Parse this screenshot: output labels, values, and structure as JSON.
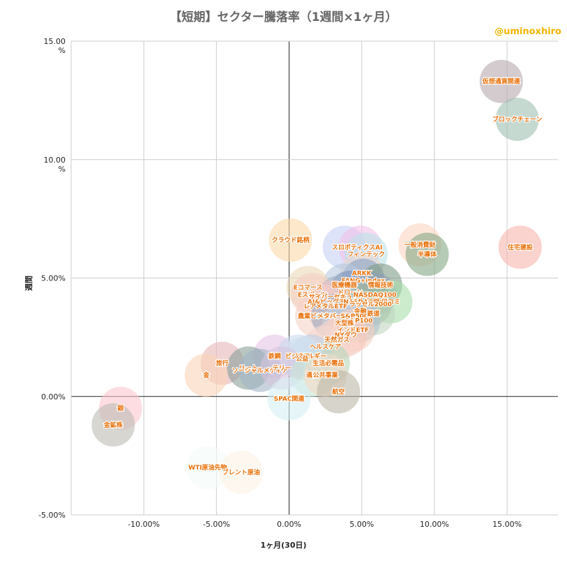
{
  "chart_data": {
    "type": "scatter",
    "title": "【短期】セクター騰落率（1週間×1ヶ月）",
    "watermark": "@uminoxhiro",
    "xlabel": "1ヶ月(30日)",
    "ylabel": "週間",
    "xlim": [
      -15,
      18.5
    ],
    "ylim": [
      -5,
      15
    ],
    "x_ticks": [
      -10,
      -5,
      0,
      5,
      10,
      15
    ],
    "x_tick_labels": [
      "-10.00%",
      "-5.00%",
      "0.00%",
      "5.00%",
      "10.00%",
      "15.00%"
    ],
    "y_ticks": [
      -5,
      0,
      5,
      10,
      15
    ],
    "y_tick_labels": [
      "-5.00%",
      "0.00%",
      "5.00%",
      "10.00\n%",
      "15.00\n%"
    ],
    "grid": true,
    "points": [
      {
        "label": "仮想通貨関連",
        "x": 14.6,
        "y": 13.3,
        "color": "#b7a8ad"
      },
      {
        "label": "ブロックチェーン",
        "x": 15.7,
        "y": 11.7,
        "color": "#9fbfb2"
      },
      {
        "label": "住宅建設",
        "x": 15.9,
        "y": 6.3,
        "color": "#f7b4ae"
      },
      {
        "label": "一般消費財",
        "x": 9.0,
        "y": 6.4,
        "color": "#fbd5c0"
      },
      {
        "label": "半導体",
        "x": 9.5,
        "y": 6.0,
        "color": "#86a886"
      },
      {
        "label": "クラウド銘柄",
        "x": 0.1,
        "y": 6.6,
        "color": "#fbd9a8"
      },
      {
        "label": "スポーツ",
        "x": 3.8,
        "y": 6.3,
        "color": "#c6d0f5"
      },
      {
        "label": "ロボティクスAI",
        "x": 4.9,
        "y": 6.3,
        "color": "#f3c0ea"
      },
      {
        "label": "フィンテック",
        "x": 5.3,
        "y": 6.0,
        "color": "#bde2e8"
      },
      {
        "label": "ARKK",
        "x": 5.0,
        "y": 5.2,
        "color": "#ead7d0"
      },
      {
        "label": "FANG+index",
        "x": 5.1,
        "y": 4.9,
        "color": "#8aa4c3"
      },
      {
        "label": "情報技術",
        "x": 6.3,
        "y": 4.7,
        "color": "#7f9b87"
      },
      {
        "label": "医療機器",
        "x": 3.8,
        "y": 4.7,
        "color": "#b8c8e0"
      },
      {
        "label": "Eコマース",
        "x": 1.3,
        "y": 4.6,
        "color": "#ead8b8"
      },
      {
        "label": "ドローン",
        "x": 4.2,
        "y": 4.4,
        "color": "#7d93b8"
      },
      {
        "label": "Eスポーツ",
        "x": 1.6,
        "y": 4.3,
        "color": "#f5cfc5"
      },
      {
        "label": "サイバーセキュリティ",
        "x": 3.5,
        "y": 4.2,
        "color": "#a4b4c8"
      },
      {
        "label": "NASDAQ100",
        "x": 5.9,
        "y": 4.3,
        "color": "#8f9fb8"
      },
      {
        "label": "AI&ビッグデータ",
        "x": 3.0,
        "y": 4.0,
        "color": "#f1c6c6"
      },
      {
        "label": "NASDAQ総合",
        "x": 5.2,
        "y": 4.0,
        "color": "#b1c3b5"
      },
      {
        "label": "口コミ",
        "x": 7.0,
        "y": 4.0,
        "color": "#a8deaa"
      },
      {
        "label": "レアメタルETF",
        "x": 2.5,
        "y": 3.8,
        "color": "#f8d0c6"
      },
      {
        "label": "ラッセル2000",
        "x": 5.6,
        "y": 3.9,
        "color": "#9ab09a"
      },
      {
        "label": "金融",
        "x": 4.9,
        "y": 3.6,
        "color": "#a9cba9"
      },
      {
        "label": "農業ビジネス",
        "x": 1.9,
        "y": 3.4,
        "color": "#f6d2c8"
      },
      {
        "label": "メタバース",
        "x": 3.0,
        "y": 3.4,
        "color": "#9aa9c1"
      },
      {
        "label": "S&P500",
        "x": 4.5,
        "y": 3.4,
        "color": "#a2b0c5"
      },
      {
        "label": "鉄道",
        "x": 5.8,
        "y": 3.5,
        "color": "#bfd6bf"
      },
      {
        "label": "S&P100",
        "x": 4.8,
        "y": 3.2,
        "color": "#b2bfcf"
      },
      {
        "label": "大型株",
        "x": 3.8,
        "y": 3.1,
        "color": "#c6d1de"
      },
      {
        "label": "インドETF",
        "x": 4.4,
        "y": 2.8,
        "color": "#f6d0c2"
      },
      {
        "label": "NYダウ",
        "x": 3.9,
        "y": 2.6,
        "color": "#f8c8bc"
      },
      {
        "label": "天然ガス",
        "x": 3.3,
        "y": 2.4,
        "color": "#f6d6cc"
      },
      {
        "label": "ヘルスケア",
        "x": 2.5,
        "y": 2.1,
        "color": "#f4d8d1"
      },
      {
        "label": "エネルギー",
        "x": 1.5,
        "y": 1.7,
        "color": "#bed1e6"
      },
      {
        "label": "鉄鋼",
        "x": -1.0,
        "y": 1.7,
        "color": "#e6c5e6"
      },
      {
        "label": "ビジネス",
        "x": 0.6,
        "y": 1.7,
        "color": "#c9d9ef"
      },
      {
        "label": "生活必需品",
        "x": 2.7,
        "y": 1.4,
        "color": "#b9d6ba"
      },
      {
        "label": "公益",
        "x": 0.9,
        "y": 1.6,
        "color": "#d2e2f0"
      },
      {
        "label": "旅行",
        "x": -4.6,
        "y": 1.4,
        "color": "#e6b6b9"
      },
      {
        "label": "リート",
        "x": -2.8,
        "y": 1.2,
        "color": "#8aa09a"
      },
      {
        "label": "ソーシャルメディア",
        "x": -2.0,
        "y": 1.1,
        "color": "#a3b5c7"
      },
      {
        "label": "テリー",
        "x": -0.5,
        "y": 1.2,
        "color": "#d7c4de"
      },
      {
        "label": "金",
        "x": -5.7,
        "y": 0.9,
        "color": "#fad3b8"
      },
      {
        "label": "通信",
        "x": 1.6,
        "y": 0.9,
        "color": "#c6e6d6"
      },
      {
        "label": "公共事業",
        "x": 2.5,
        "y": 0.9,
        "color": "#f4dac6"
      },
      {
        "label": "航空",
        "x": 3.4,
        "y": 0.2,
        "color": "#bdb7a8"
      },
      {
        "label": "SPAC関連",
        "x": 0.0,
        "y": -0.1,
        "color": "#d5eef3"
      },
      {
        "label": "銀",
        "x": -11.6,
        "y": -0.5,
        "color": "#fbc7cf"
      },
      {
        "label": "金鉱株",
        "x": -12.1,
        "y": -1.2,
        "color": "#bcbab3"
      },
      {
        "label": "WTI原油先物",
        "x": -5.6,
        "y": -3.0,
        "color": "#f4faf6"
      },
      {
        "label": "ブレント原油",
        "x": -3.3,
        "y": -3.2,
        "color": "#fdf2e6"
      }
    ]
  }
}
